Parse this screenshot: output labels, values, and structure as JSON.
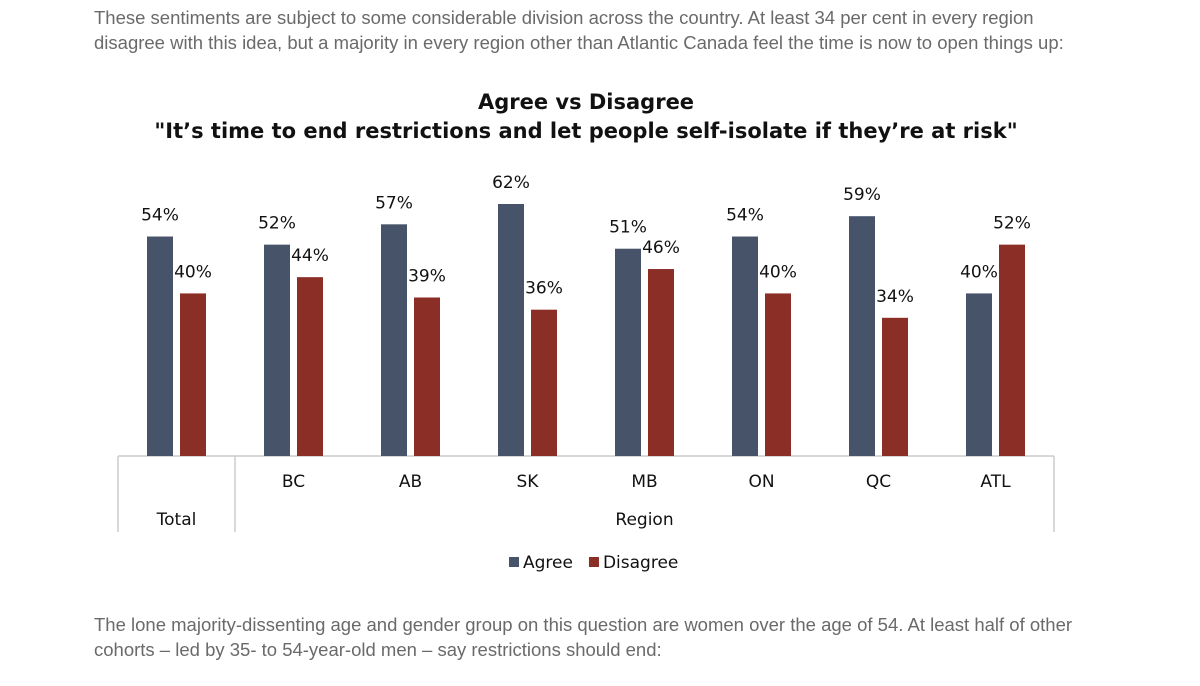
{
  "intro": [
    "These sentiments are subject to some considerable division across the country. At least 34 per cent in every region",
    "disagree with this idea, but a majority in every region other than Atlantic Canada feel the time is now to open things up:"
  ],
  "chart_data": {
    "type": "bar",
    "title": [
      "Agree vs Disagree",
      "\"It’s time to end restrictions and let people self-isolate if they’re at risk\""
    ],
    "categories": [
      null,
      "BC",
      "AB",
      "SK",
      "MB",
      "ON",
      "QC",
      "ATL"
    ],
    "category_groups": [
      {
        "label": "Total",
        "size": 1
      },
      {
        "label": "Region",
        "size": 7
      }
    ],
    "series": [
      {
        "name": "Agree",
        "color": "#475369",
        "values": [
          54,
          52,
          57,
          62,
          51,
          54,
          59,
          40
        ],
        "value_labels": [
          "54%",
          "52%",
          "57%",
          "62%",
          "51%",
          "54%",
          "59%",
          "40%"
        ]
      },
      {
        "name": "Disagree",
        "color": "#8b2e26",
        "values": [
          40,
          44,
          39,
          36,
          46,
          40,
          34,
          52
        ],
        "value_labels": [
          "40%",
          "44%",
          "39%",
          "36%",
          "46%",
          "40%",
          "34%",
          "52%"
        ]
      }
    ],
    "legend": "bottom"
  },
  "outro": [
    "The lone majority-dissenting age and gender group on this question are women over the age of 54. At least half of other",
    "cohorts – led by 35- to 54-year-old men – say restrictions should end:"
  ]
}
